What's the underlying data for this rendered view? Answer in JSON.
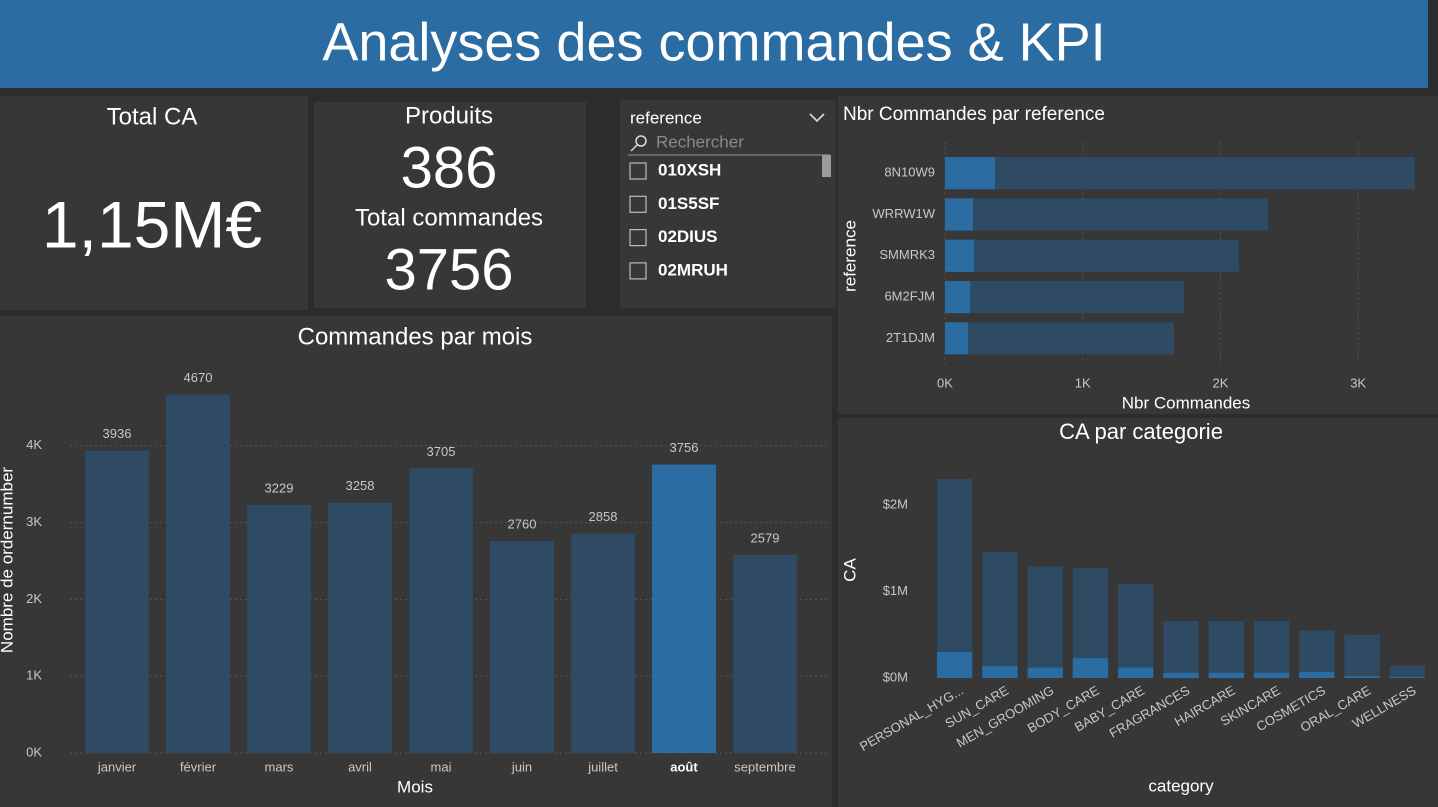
{
  "header": {
    "title": "Analyses des commandes & KPI"
  },
  "kpis": [
    {
      "title": "Total CA",
      "value": "1,15M€"
    },
    {
      "title": "Produits",
      "value": "386"
    },
    {
      "title": "Total commandes",
      "value": "3756"
    }
  ],
  "slicer": {
    "title": "reference",
    "search": "Rechercher",
    "items": [
      "010XSH",
      "01S5SF",
      "02DIUS",
      "02MRUH"
    ]
  },
  "chart_data": [
    {
      "type": "bar",
      "title": "Commandes par mois",
      "x_label": "Mois",
      "y_label": "Nombre de ordernumber",
      "categories": [
        "janvier",
        "février",
        "mars",
        "avril",
        "mai",
        "juin",
        "juillet",
        "août",
        "septembre"
      ],
      "values": [
        3936,
        4670,
        3229,
        3258,
        3705,
        2760,
        2858,
        3756,
        2579
      ],
      "color": "#2f4b63",
      "selected_color": "#2b6ca3",
      "selected": [
        false,
        false,
        false,
        false,
        false,
        false,
        false,
        true,
        false
      ],
      "ylim": [
        0,
        5000
      ],
      "yticks": [
        {
          "value": 0,
          "label": "0K"
        },
        {
          "value": 1000,
          "label": "1K"
        },
        {
          "value": 2000,
          "label": "2K"
        },
        {
          "value": 3000,
          "label": "3K"
        },
        {
          "value": 4000,
          "label": "4K"
        }
      ],
      "grid": true
    },
    {
      "type": "bar",
      "horizontal": true,
      "title": "Nbr Commandes par reference",
      "x_label": "Nbr Commandes",
      "y_label": "reference",
      "categories": [
        "8N10W9",
        "WRRW1W",
        "SMMRK3",
        "6M2FJM",
        "2T1DJM"
      ],
      "series": [
        {
          "color": "#2f4b63",
          "values": [
            3413,
            2346,
            2135,
            1736,
            1663
          ]
        },
        {
          "color": "#2b6ca3",
          "values": [
            363,
            203,
            211,
            182,
            167
          ]
        }
      ],
      "xlim": [
        0,
        3500
      ],
      "xticks": [
        {
          "value": 0,
          "label": "0K"
        },
        {
          "value": 1000,
          "label": "1K"
        },
        {
          "value": 2000,
          "label": "2K"
        },
        {
          "value": 3000,
          "label": "3K"
        }
      ],
      "grid": true
    },
    {
      "type": "bar",
      "title": "CA par categorie",
      "x_label": "category",
      "y_label": "CA",
      "categories": [
        "PERSONAL_HYG...",
        "SUN_CARE",
        "MEN_GROOMING",
        "BODY_CARE",
        "BABY_CARE",
        "FRAGRANCES",
        "HAIRCARE",
        "SKINCARE",
        "COSMETICS",
        "ORAL_CARE",
        "WELLNESS"
      ],
      "series": [
        {
          "color": "#2f4b63",
          "values": [
            2300000,
            1460000,
            1290000,
            1270000,
            1090000,
            660000,
            660000,
            660000,
            550000,
            500000,
            140000
          ]
        },
        {
          "color": "#2b6ca3",
          "values": [
            300000,
            140000,
            120000,
            230000,
            120000,
            60000,
            60000,
            60000,
            70000,
            20000,
            10000
          ]
        }
      ],
      "ylim": [
        0,
        2500000
      ],
      "yticks": [
        {
          "value": 0,
          "label": "$0M"
        },
        {
          "value": 1000000,
          "label": "$1M"
        },
        {
          "value": 2000000,
          "label": "$2M"
        }
      ],
      "grid": false
    }
  ]
}
